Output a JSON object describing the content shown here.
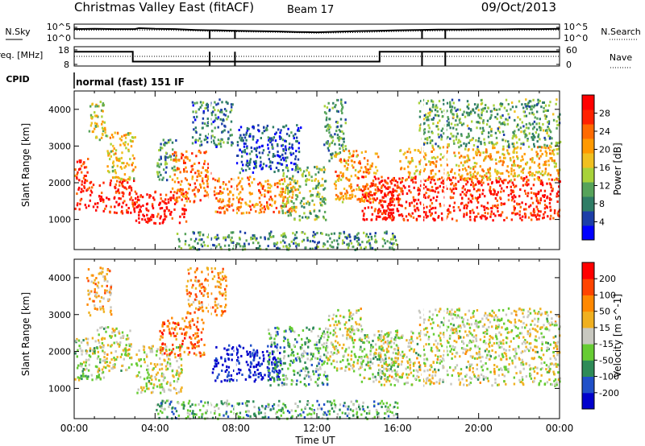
{
  "header": {
    "title": "Christmas Valley East (fitACF)",
    "beam": "Beam 17",
    "date": "09/Oct/2013"
  },
  "time_axis": {
    "label": "Time UT",
    "ticks": [
      "00:00",
      "04:00",
      "08:00",
      "12:00",
      "16:00",
      "20:00",
      "00:00"
    ],
    "range_hours": [
      0,
      24
    ]
  },
  "chart_data": [
    {
      "type": "line",
      "panel": "noise",
      "left_label": "N.Sky",
      "right_label": "N.Search",
      "left_ticks": [
        "10^5",
        "10^0"
      ],
      "right_ticks": [
        "10^5",
        "10^0"
      ],
      "ylim": [
        0,
        5
      ],
      "ylog": true,
      "series": [
        {
          "name": "N.Sky",
          "style": "solid",
          "x": [
            0,
            1,
            2,
            3,
            3.2,
            4,
            5,
            6,
            6.7,
            7,
            8,
            9,
            10,
            11,
            12,
            13,
            14,
            15,
            16,
            17,
            18,
            19,
            20,
            21,
            22,
            23,
            24
          ],
          "y": [
            3.3,
            3.4,
            3.3,
            3.3,
            3.6,
            3.4,
            3.3,
            3.0,
            2.9,
            2.9,
            2.7,
            2.6,
            2.5,
            2.3,
            2.2,
            2.4,
            2.6,
            2.7,
            2.9,
            3.0,
            3.1,
            3.1,
            3.2,
            3.2,
            3.3,
            3.3,
            3.4
          ]
        },
        {
          "name": "N.Search",
          "style": "dotted",
          "x": [
            0,
            2,
            4,
            6,
            8,
            10,
            12,
            14,
            16,
            18,
            20,
            22,
            24
          ],
          "y": [
            2.9,
            3.0,
            3.0,
            2.7,
            2.4,
            2.2,
            1.9,
            2.1,
            2.5,
            2.7,
            2.8,
            2.9,
            3.0
          ]
        }
      ],
      "dropouts_hours": [
        6.7,
        7.95,
        17.2,
        18.35
      ]
    },
    {
      "type": "line",
      "panel": "frequency",
      "left_label": "Freq. [MHz]",
      "right_label": "Nave",
      "left_ticks": [
        "18",
        "8"
      ],
      "right_ticks": [
        "60",
        "0"
      ],
      "freq_ylim": [
        8,
        18
      ],
      "nave_ylim": [
        0,
        60
      ],
      "series": [
        {
          "name": "Freq.",
          "style": "solid",
          "x": [
            0,
            2.9,
            2.9,
            15.1,
            15.1,
            24
          ],
          "y": [
            15.4,
            15.4,
            10.3,
            10.3,
            15.4,
            15.4
          ]
        },
        {
          "name": "Nave",
          "style": "dotted",
          "x": [
            0,
            24
          ],
          "y": [
            30,
            30
          ]
        }
      ],
      "dropouts_hours": [
        6.7,
        7.95,
        17.2,
        18.35
      ]
    },
    {
      "type": "heatmap",
      "panel": "power",
      "cpid_label": "CPID",
      "cpid_text": "normal (fast) 151 IF",
      "ylabel": "Slant Range [km]",
      "xlim": [
        0,
        24
      ],
      "ylim": [
        180,
        4500
      ],
      "yticks": [
        1000,
        2000,
        3000,
        4000
      ],
      "colorbar": {
        "label": "Power [dB]",
        "range": [
          0,
          32
        ],
        "ticks": [
          "4",
          "8",
          "12",
          "16",
          "20",
          "24",
          "28"
        ],
        "colors": [
          "#0000ff",
          "#1c3ea8",
          "#2f7d66",
          "#56a35a",
          "#a8d23a",
          "#f0c020",
          "#ff9900",
          "#ff6a00",
          "#ff2200",
          "#ff0000"
        ]
      },
      "scatter_regions": [
        {
          "t": [
            0.0,
            0.7
          ],
          "r": [
            1300,
            2700
          ],
          "level": 0.85
        },
        {
          "t": [
            0.7,
            1.6
          ],
          "r": [
            3200,
            4300
          ],
          "level": 0.5
        },
        {
          "t": [
            0.7,
            3.0
          ],
          "r": [
            1200,
            2100
          ],
          "level": 0.9
        },
        {
          "t": [
            1.6,
            3.0
          ],
          "r": [
            2100,
            3400
          ],
          "level": 0.55
        },
        {
          "t": [
            3.0,
            5.5
          ],
          "r": [
            900,
            1800
          ],
          "level": 0.95
        },
        {
          "t": [
            4.0,
            5.0
          ],
          "r": [
            2100,
            3200
          ],
          "level": 0.3
        },
        {
          "t": [
            4.8,
            6.7
          ],
          "r": [
            1500,
            2900
          ],
          "level": 0.75
        },
        {
          "t": [
            5.8,
            7.8
          ],
          "r": [
            3000,
            4300
          ],
          "level": 0.25
        },
        {
          "t": [
            6.8,
            11.0
          ],
          "r": [
            1200,
            2200
          ],
          "level": 0.7
        },
        {
          "t": [
            8.0,
            11.2
          ],
          "r": [
            2300,
            3600
          ],
          "level": 0.15
        },
        {
          "t": [
            10.2,
            12.4
          ],
          "r": [
            1000,
            2500
          ],
          "level": 0.4
        },
        {
          "t": [
            12.3,
            13.4
          ],
          "r": [
            2600,
            4300
          ],
          "level": 0.3
        },
        {
          "t": [
            12.8,
            15.0
          ],
          "r": [
            1500,
            2900
          ],
          "level": 0.65
        },
        {
          "t": [
            14.2,
            16.2
          ],
          "r": [
            1000,
            2200
          ],
          "level": 0.9
        },
        {
          "t": [
            15.0,
            24.0
          ],
          "r": [
            1000,
            2200
          ],
          "level": 0.9
        },
        {
          "t": [
            16.0,
            24.0
          ],
          "r": [
            2100,
            3000
          ],
          "level": 0.6
        },
        {
          "t": [
            17.0,
            24.0
          ],
          "r": [
            3000,
            4300
          ],
          "level": 0.35
        },
        {
          "t": [
            5.0,
            16.0
          ],
          "r": [
            200,
            700
          ],
          "level": 0.3
        }
      ]
    },
    {
      "type": "heatmap",
      "panel": "velocity",
      "ylabel": "Slant Range [km]",
      "xlim": [
        0,
        24
      ],
      "ylim": [
        180,
        4500
      ],
      "yticks": [
        1000,
        2000,
        3000,
        4000
      ],
      "colorbar": {
        "label": "Velocity [m s^-1]",
        "range": [
          -250,
          250
        ],
        "ticks": [
          "200",
          "100",
          "50",
          "15",
          "-15",
          "-50",
          "-100",
          "-200"
        ],
        "colors": [
          "#0000cc",
          "#2050c8",
          "#2e8b57",
          "#66cc33",
          "#c8c8c0",
          "#f0b020",
          "#ff8800",
          "#ff4400",
          "#ff0000"
        ]
      },
      "scatter_regions": [
        {
          "t": [
            0.0,
            1.5
          ],
          "r": [
            1200,
            2400
          ],
          "level": 0.45
        },
        {
          "t": [
            1.0,
            2.8
          ],
          "r": [
            1500,
            2700
          ],
          "level": 0.5
        },
        {
          "t": [
            0.6,
            1.8
          ],
          "r": [
            3000,
            4300
          ],
          "level": 0.65
        },
        {
          "t": [
            3.0,
            5.3
          ],
          "r": [
            900,
            2200
          ],
          "level": 0.5
        },
        {
          "t": [
            4.2,
            6.4
          ],
          "r": [
            1900,
            3000
          ],
          "level": 0.75
        },
        {
          "t": [
            5.5,
            7.5
          ],
          "r": [
            3000,
            4300
          ],
          "level": 0.7
        },
        {
          "t": [
            6.8,
            10.2
          ],
          "r": [
            1200,
            2200
          ],
          "level": 0.05
        },
        {
          "t": [
            9.5,
            12.5
          ],
          "r": [
            1100,
            2700
          ],
          "level": 0.35
        },
        {
          "t": [
            12.5,
            14.2
          ],
          "r": [
            1500,
            3200
          ],
          "level": 0.5
        },
        {
          "t": [
            14.0,
            16.0
          ],
          "r": [
            1200,
            2500
          ],
          "level": 0.45
        },
        {
          "t": [
            15.0,
            24.0
          ],
          "r": [
            1100,
            2600
          ],
          "level": 0.5
        },
        {
          "t": [
            17.0,
            24.0
          ],
          "r": [
            2600,
            3200
          ],
          "level": 0.5
        },
        {
          "t": [
            4.0,
            16.0
          ],
          "r": [
            200,
            700
          ],
          "level": 0.35
        }
      ]
    }
  ]
}
